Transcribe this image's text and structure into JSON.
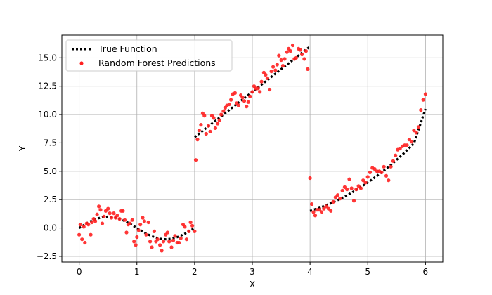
{
  "chart_data": {
    "type": "line+scatter",
    "title": "",
    "xlabel": "X",
    "ylabel": "Y",
    "xlim": [
      -0.3,
      6.3
    ],
    "ylim": [
      -3.0,
      17.0
    ],
    "x_ticks": [
      0,
      1,
      2,
      3,
      4,
      5,
      6
    ],
    "x_tick_labels": [
      "0",
      "1",
      "2",
      "3",
      "4",
      "5",
      "6"
    ],
    "y_ticks": [
      -2.5,
      0.0,
      2.5,
      5.0,
      7.5,
      10.0,
      12.5,
      15.0
    ],
    "y_tick_labels": [
      "−2.5",
      "0.0",
      "2.5",
      "5.0",
      "7.5",
      "10.0",
      "12.5",
      "15.0"
    ],
    "grid": true,
    "legend_position": "top-left",
    "series": [
      {
        "name": "True Function",
        "kind": "line",
        "style": "dotted",
        "color": "#000000",
        "segments": [
          {
            "x": [
              0.0,
              0.1,
              0.2,
              0.3,
              0.4,
              0.5,
              0.6,
              0.7,
              0.8,
              0.9,
              1.0,
              1.1,
              1.2,
              1.3,
              1.4,
              1.5,
              1.6,
              1.7,
              1.8,
              1.9,
              2.0
            ],
            "y": [
              0.0,
              0.31,
              0.59,
              0.81,
              0.95,
              1.0,
              0.95,
              0.81,
              0.59,
              0.31,
              0.0,
              -0.31,
              -0.59,
              -0.81,
              -0.95,
              -1.0,
              -0.95,
              -0.81,
              -0.59,
              -0.31,
              0.0
            ]
          },
          {
            "x": [
              2.0,
              2.5,
              3.0,
              3.5,
              4.0
            ],
            "y": [
              8.0,
              10.0,
              12.0,
              14.0,
              16.0
            ]
          },
          {
            "x": [
              4.0,
              4.2,
              4.4,
              4.6,
              4.8,
              5.0,
              5.2,
              5.4,
              5.6,
              5.8,
              6.0
            ],
            "y": [
              1.5,
              1.84,
              2.26,
              2.76,
              3.34,
              4.0,
              4.74,
              5.56,
              6.46,
              7.44,
              10.5
            ]
          }
        ]
      },
      {
        "name": "Random Forest Predictions",
        "kind": "scatter",
        "color": "#ff2020",
        "points": [
          [
            0.0,
            -0.6
          ],
          [
            0.02,
            0.3
          ],
          [
            0.05,
            -1.0
          ],
          [
            0.08,
            0.1
          ],
          [
            0.1,
            -1.3
          ],
          [
            0.13,
            0.4
          ],
          [
            0.16,
            0.3
          ],
          [
            0.2,
            -0.6
          ],
          [
            0.22,
            0.5
          ],
          [
            0.25,
            0.8
          ],
          [
            0.28,
            0.6
          ],
          [
            0.31,
            1.2
          ],
          [
            0.34,
            1.9
          ],
          [
            0.37,
            1.6
          ],
          [
            0.4,
            0.4
          ],
          [
            0.43,
            1.0
          ],
          [
            0.46,
            1.5
          ],
          [
            0.5,
            1.7
          ],
          [
            0.53,
            1.3
          ],
          [
            0.56,
            0.9
          ],
          [
            0.6,
            1.3
          ],
          [
            0.63,
            0.9
          ],
          [
            0.66,
            1.1
          ],
          [
            0.7,
            0.8
          ],
          [
            0.73,
            1.5
          ],
          [
            0.76,
            1.5
          ],
          [
            0.79,
            0.7
          ],
          [
            0.82,
            -0.4
          ],
          [
            0.85,
            0.3
          ],
          [
            0.88,
            0.4
          ],
          [
            0.92,
            0.7
          ],
          [
            0.95,
            -1.2
          ],
          [
            0.98,
            -1.5
          ],
          [
            1.0,
            -0.8
          ],
          [
            1.03,
            -0.2
          ],
          [
            1.06,
            0.3
          ],
          [
            1.1,
            0.9
          ],
          [
            1.13,
            0.6
          ],
          [
            1.16,
            -0.6
          ],
          [
            1.2,
            0.5
          ],
          [
            1.23,
            -1.2
          ],
          [
            1.26,
            -1.7
          ],
          [
            1.3,
            -0.3
          ],
          [
            1.33,
            -1.2
          ],
          [
            1.36,
            -1.0
          ],
          [
            1.4,
            -1.5
          ],
          [
            1.43,
            -2.0
          ],
          [
            1.46,
            -1.2
          ],
          [
            1.5,
            -0.6
          ],
          [
            1.53,
            -0.4
          ],
          [
            1.56,
            -1.2
          ],
          [
            1.6,
            -1.7
          ],
          [
            1.63,
            -1.1
          ],
          [
            1.66,
            -0.7
          ],
          [
            1.7,
            -1.3
          ],
          [
            1.73,
            -1.3
          ],
          [
            1.76,
            -0.9
          ],
          [
            1.8,
            0.3
          ],
          [
            1.83,
            0.1
          ],
          [
            1.86,
            -1.0
          ],
          [
            1.9,
            -0.3
          ],
          [
            1.93,
            0.5
          ],
          [
            1.96,
            0.2
          ],
          [
            2.0,
            -0.3
          ],
          [
            2.02,
            6.0
          ],
          [
            2.05,
            7.8
          ],
          [
            2.08,
            8.6
          ],
          [
            2.11,
            9.1
          ],
          [
            2.14,
            10.1
          ],
          [
            2.17,
            9.9
          ],
          [
            2.2,
            8.3
          ],
          [
            2.24,
            9.0
          ],
          [
            2.27,
            8.5
          ],
          [
            2.3,
            9.9
          ],
          [
            2.33,
            9.7
          ],
          [
            2.36,
            8.8
          ],
          [
            2.4,
            9.2
          ],
          [
            2.43,
            9.5
          ],
          [
            2.46,
            10.0
          ],
          [
            2.5,
            10.3
          ],
          [
            2.53,
            10.6
          ],
          [
            2.56,
            10.8
          ],
          [
            2.6,
            10.9
          ],
          [
            2.63,
            11.3
          ],
          [
            2.66,
            11.8
          ],
          [
            2.7,
            11.9
          ],
          [
            2.73,
            11.0
          ],
          [
            2.76,
            10.8
          ],
          [
            2.8,
            11.7
          ],
          [
            2.83,
            11.5
          ],
          [
            2.86,
            11.2
          ],
          [
            2.9,
            10.7
          ],
          [
            2.93,
            11.1
          ],
          [
            2.96,
            11.6
          ],
          [
            3.0,
            12.0
          ],
          [
            3.03,
            12.5
          ],
          [
            3.06,
            12.3
          ],
          [
            3.1,
            12.3
          ],
          [
            3.13,
            12.0
          ],
          [
            3.16,
            12.9
          ],
          [
            3.2,
            13.7
          ],
          [
            3.23,
            13.5
          ],
          [
            3.26,
            13.2
          ],
          [
            3.3,
            12.2
          ],
          [
            3.33,
            13.8
          ],
          [
            3.36,
            14.2
          ],
          [
            3.4,
            13.9
          ],
          [
            3.43,
            14.4
          ],
          [
            3.46,
            15.2
          ],
          [
            3.5,
            14.8
          ],
          [
            3.53,
            14.3
          ],
          [
            3.56,
            14.9
          ],
          [
            3.6,
            15.5
          ],
          [
            3.63,
            15.8
          ],
          [
            3.66,
            15.6
          ],
          [
            3.7,
            16.1
          ],
          [
            3.73,
            14.9
          ],
          [
            3.76,
            15.0
          ],
          [
            3.8,
            15.8
          ],
          [
            3.83,
            15.7
          ],
          [
            3.86,
            15.3
          ],
          [
            3.9,
            14.9
          ],
          [
            3.93,
            15.6
          ],
          [
            3.96,
            14.0
          ],
          [
            4.0,
            4.4
          ],
          [
            4.03,
            2.1
          ],
          [
            4.06,
            1.4
          ],
          [
            4.09,
            1.1
          ],
          [
            4.12,
            1.6
          ],
          [
            4.16,
            1.6
          ],
          [
            4.2,
            1.4
          ],
          [
            4.24,
            1.7
          ],
          [
            4.28,
            1.9
          ],
          [
            4.32,
            1.7
          ],
          [
            4.36,
            1.5
          ],
          [
            4.4,
            2.3
          ],
          [
            4.44,
            2.7
          ],
          [
            4.48,
            2.9
          ],
          [
            4.52,
            2.6
          ],
          [
            4.56,
            3.3
          ],
          [
            4.6,
            3.6
          ],
          [
            4.64,
            3.4
          ],
          [
            4.68,
            4.3
          ],
          [
            4.72,
            3.5
          ],
          [
            4.76,
            2.4
          ],
          [
            4.8,
            3.4
          ],
          [
            4.84,
            3.7
          ],
          [
            4.88,
            3.5
          ],
          [
            4.92,
            4.2
          ],
          [
            4.96,
            4.0
          ],
          [
            5.0,
            4.5
          ],
          [
            5.04,
            4.9
          ],
          [
            5.08,
            5.3
          ],
          [
            5.12,
            5.2
          ],
          [
            5.16,
            5.0
          ],
          [
            5.2,
            5.0
          ],
          [
            5.24,
            4.9
          ],
          [
            5.28,
            5.4
          ],
          [
            5.32,
            4.6
          ],
          [
            5.36,
            4.2
          ],
          [
            5.4,
            5.4
          ],
          [
            5.44,
            5.9
          ],
          [
            5.48,
            6.4
          ],
          [
            5.52,
            6.9
          ],
          [
            5.56,
            7.0
          ],
          [
            5.6,
            7.2
          ],
          [
            5.64,
            7.3
          ],
          [
            5.68,
            7.3
          ],
          [
            5.72,
            7.8
          ],
          [
            5.76,
            7.6
          ],
          [
            5.8,
            8.6
          ],
          [
            5.84,
            8.4
          ],
          [
            5.88,
            8.9
          ],
          [
            5.92,
            10.4
          ],
          [
            5.96,
            11.3
          ],
          [
            6.0,
            11.8
          ]
        ]
      }
    ]
  }
}
